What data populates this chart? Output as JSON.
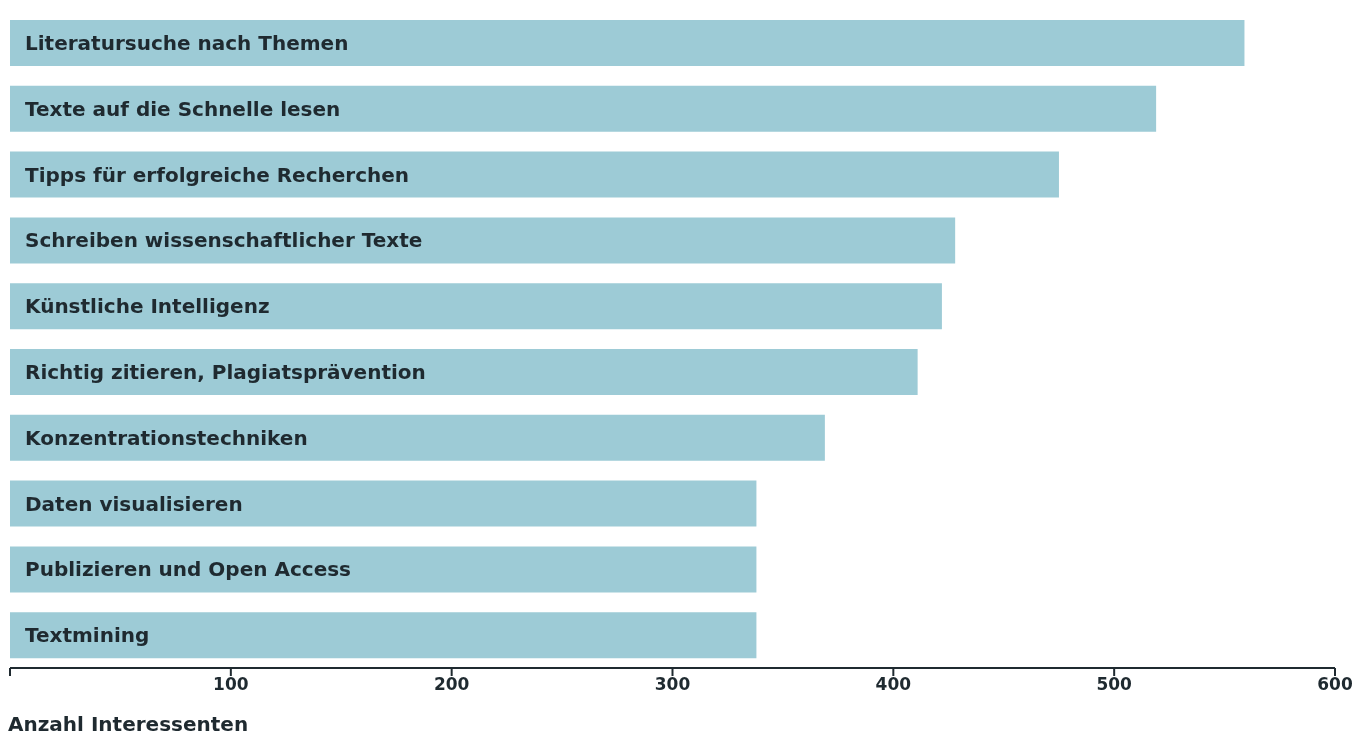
{
  "chart_data": {
    "type": "bar",
    "orientation": "horizontal",
    "xlabel": "Anzahl Interessenten",
    "categories": [
      "Literatursuche nach Themen",
      "Texte auf die Schnelle lesen",
      "Tipps für erfolgreiche Recherchen",
      "Schreiben wissenschaftlicher Texte",
      "Künstliche Intelligenz",
      "Richtig zitieren, Plagiatsprävention",
      "Konzentrationstechniken",
      "Daten visualisieren",
      "Publizieren und Open Access",
      "Textmining"
    ],
    "values": [
      559,
      519,
      475,
      428,
      422,
      411,
      369,
      338,
      338,
      338
    ],
    "color": "#9dcbd6",
    "xlim": [
      0,
      600
    ],
    "xticks": [
      {
        "value": 0,
        "label": null
      },
      100,
      200,
      300,
      400,
      500,
      600
    ],
    "grid": false,
    "legend": false
  }
}
